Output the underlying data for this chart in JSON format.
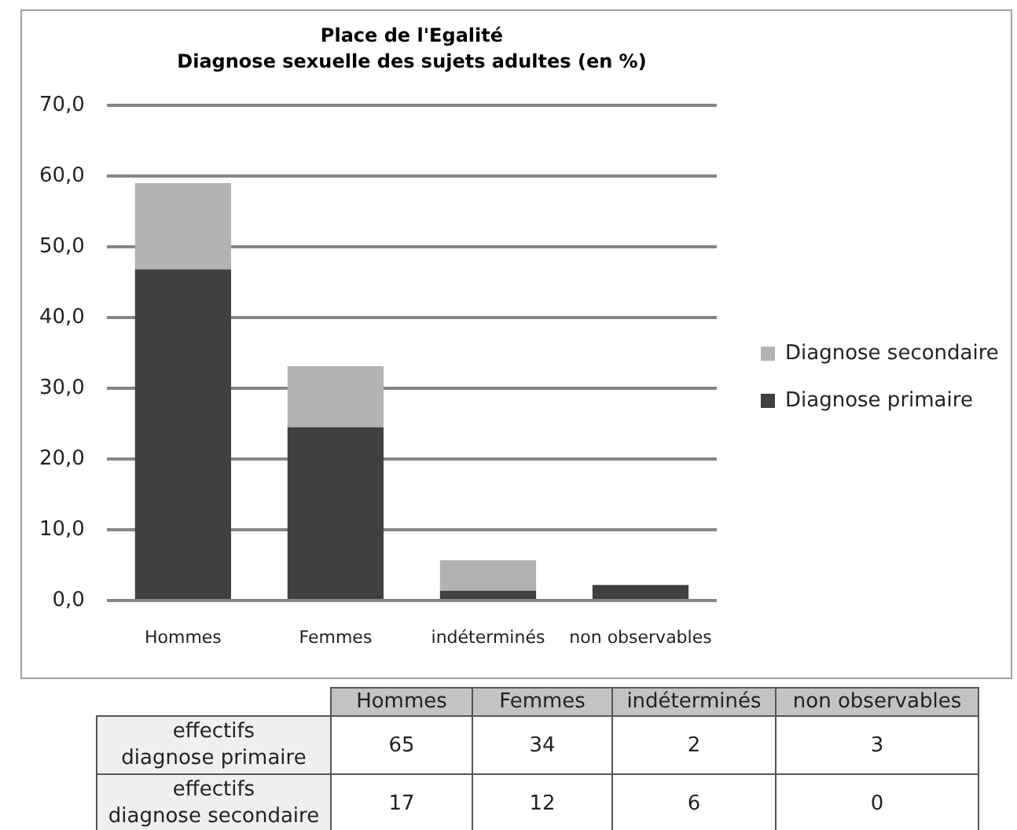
{
  "chart_data": [
    {
      "type": "bar",
      "title": "Place de l'Egalité",
      "subtitle": "Diagnose sexuelle des sujets adultes (en %)",
      "categories": [
        "Hommes",
        "Femmes",
        "indéterminés",
        "non observables"
      ],
      "series": [
        {
          "name": "Diagnose primaire",
          "color": "#404040",
          "values": [
            46.8,
            24.5,
            1.4,
            2.2
          ]
        },
        {
          "name": "Diagnose secondaire",
          "color": "#b2b2b2",
          "values": [
            12.2,
            8.6,
            4.3,
            0
          ]
        }
      ],
      "stacked": true,
      "ylim": [
        0,
        70
      ],
      "yticks": [
        {
          "value": 0,
          "label": "0,0"
        },
        {
          "value": 10,
          "label": "10,0"
        },
        {
          "value": 20,
          "label": "20,0"
        },
        {
          "value": 30,
          "label": "30,0"
        },
        {
          "value": 40,
          "label": "40,0"
        },
        {
          "value": 50,
          "label": "50,0"
        },
        {
          "value": 60,
          "label": "60,0"
        },
        {
          "value": 70,
          "label": "70,0"
        }
      ],
      "grid": "y",
      "legend": "right"
    },
    {
      "type": "heatmap",
      "categories": [
        "Hommes",
        "Femmes",
        "indéterminés",
        "non observables"
      ],
      "y_categories": [
        "effectifs\ndiagnose primaire",
        "effectifs\ndiagnose secondaire"
      ],
      "cells": [
        [
          65,
          34,
          2,
          3
        ],
        [
          17,
          12,
          6,
          0
        ]
      ],
      "data_labels": true
    }
  ]
}
